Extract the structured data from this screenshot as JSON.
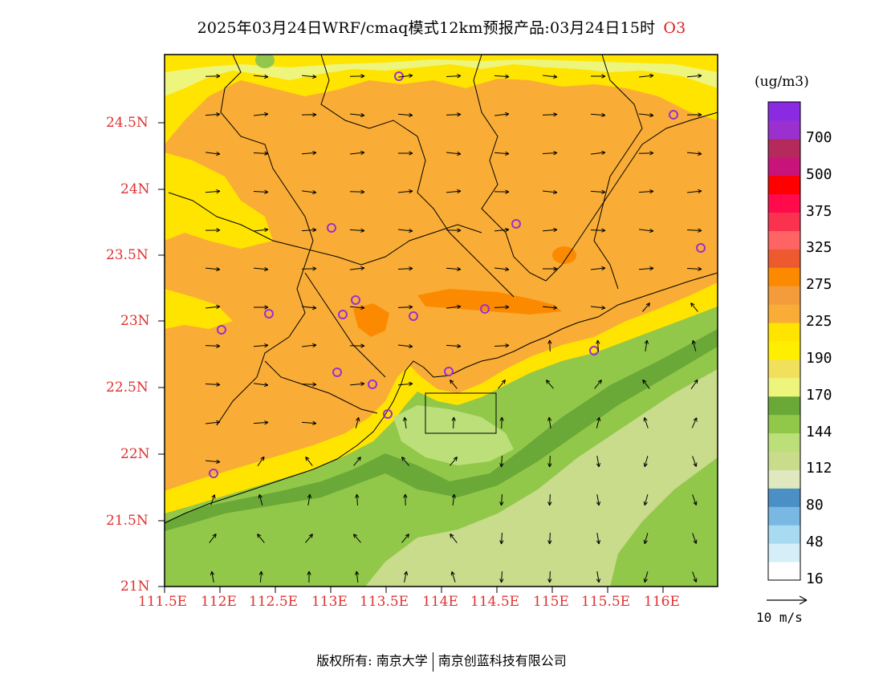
{
  "title": {
    "main": "2025年03月24日WRF/cmaq模式12km预报产品:03月24日15时",
    "species": "O3"
  },
  "axes": {
    "y_labels": [
      "24.5N",
      "24N",
      "23.5N",
      "23N",
      "22.5N",
      "22N",
      "21.5N",
      "21N"
    ],
    "x_labels": [
      "111.5E",
      "112E",
      "112.5E",
      "113E",
      "113.5E",
      "114E",
      "114.5E",
      "115E",
      "115.5E",
      "116E"
    ]
  },
  "legend": {
    "unit": "(ug/m3)",
    "bins": [
      {
        "color": "#ffffff",
        "label": "16"
      },
      {
        "color": "#d6eef8",
        "label": ""
      },
      {
        "color": "#a8daf2",
        "label": "48"
      },
      {
        "color": "#78b8e2",
        "label": ""
      },
      {
        "color": "#4a90c4",
        "label": "80"
      },
      {
        "color": "#dfe8be",
        "label": ""
      },
      {
        "color": "#c8dc8c",
        "label": "112"
      },
      {
        "color": "#bcdf7a",
        "label": ""
      },
      {
        "color": "#92c84a",
        "label": "144"
      },
      {
        "color": "#6aa838",
        "label": ""
      },
      {
        "color": "#eef57c",
        "label": "170"
      },
      {
        "color": "#f1e05c",
        "label": ""
      },
      {
        "color": "#ffee00",
        "label": "190"
      },
      {
        "color": "#ffe400",
        "label": ""
      },
      {
        "color": "#f9ad36",
        "label": "225"
      },
      {
        "color": "#f49b3c",
        "label": ""
      },
      {
        "color": "#fc8a00",
        "label": "275"
      },
      {
        "color": "#ee5a30",
        "label": ""
      },
      {
        "color": "#ff6464",
        "label": "325"
      },
      {
        "color": "#fa3250",
        "label": ""
      },
      {
        "color": "#ff0a4a",
        "label": "375"
      },
      {
        "color": "#ff0000",
        "label": ""
      },
      {
        "color": "#c8147a",
        "label": "500"
      },
      {
        "color": "#b42a5a",
        "label": ""
      },
      {
        "color": "#9b30d0",
        "label": "700"
      },
      {
        "color": "#8a2be2",
        "label": ""
      }
    ]
  },
  "wind_reference": {
    "label": "10 m/s"
  },
  "footer": {
    "left": "版权所有: 南京大学",
    "right": "南京创蓝科技有限公司"
  }
}
